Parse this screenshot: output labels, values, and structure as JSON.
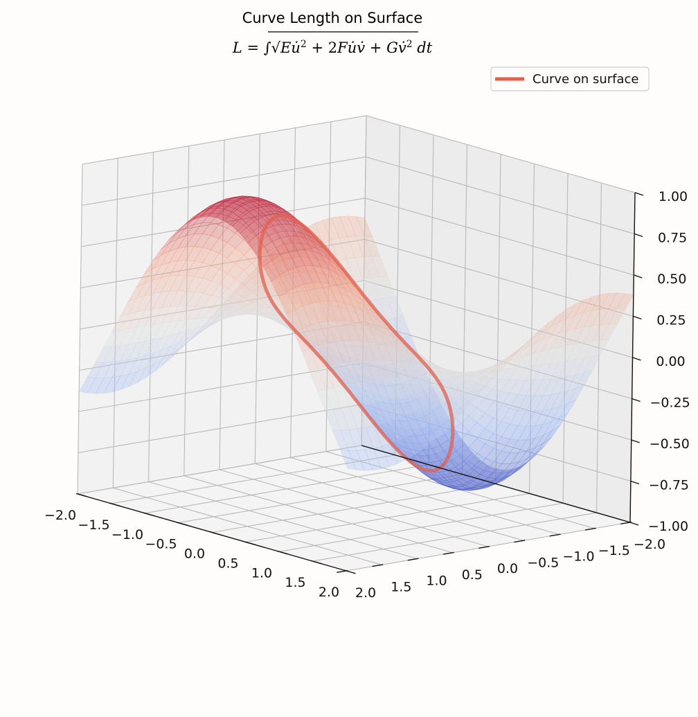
{
  "chart_data": {
    "type": "surface3d",
    "title": "Curve Length on Surface",
    "subtitle": "L = ∫√(Eu̇² + 2Fu̇v̇ + Gv̇²) dt",
    "legend": {
      "label": "Curve on surface",
      "placement": "top-right",
      "color": "#e06050"
    },
    "xlim": [
      -2.0,
      2.0
    ],
    "ylim": [
      -2.0,
      2.0
    ],
    "zlim": [
      -1.0,
      1.0
    ],
    "x_ticks": [
      "−2.0",
      "−1.5",
      "−1.0",
      "−0.5",
      "0.0",
      "0.5",
      "1.0",
      "1.5",
      "2.0"
    ],
    "y_ticks": [
      "−2.0",
      "−1.5",
      "−1.0",
      "−0.5",
      "0.0",
      "0.5",
      "1.0",
      "1.5",
      "2.0"
    ],
    "z_ticks": [
      "−1.00",
      "−0.75",
      "−0.50",
      "−0.25",
      "0.00",
      "0.25",
      "0.50",
      "0.75",
      "1.00"
    ],
    "x_tick_values": [
      -2.0,
      -1.5,
      -1.0,
      -0.5,
      0.0,
      0.5,
      1.0,
      1.5,
      2.0
    ],
    "y_tick_values": [
      -2.0,
      -1.5,
      -1.0,
      -0.5,
      0.0,
      0.5,
      1.0,
      1.5,
      2.0
    ],
    "z_tick_values": [
      -1.0,
      -0.75,
      -0.5,
      -0.25,
      0.0,
      0.25,
      0.5,
      0.75,
      1.0
    ],
    "surface": {
      "function": "z = sin(x) * cos(y)",
      "colormap": "coolwarm",
      "alpha": 0.35
    },
    "curve": {
      "function": "u = cos(t), v = sin(t), z = sin(u) * cos(v)",
      "t_range": [
        0,
        6.2832
      ],
      "color": "#e06050"
    },
    "grid": true
  }
}
